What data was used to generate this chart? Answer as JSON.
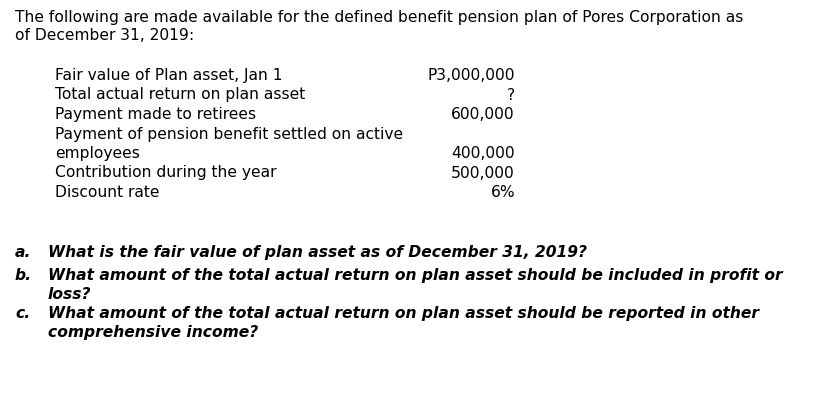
{
  "bg_color": "#ffffff",
  "intro_line1": "The following are made available for the defined benefit pension plan of Pores Corporation as",
  "intro_line2": "of December 31, 2019:",
  "table_rows": [
    {
      "label": "Fair value of Plan asset, Jan 1",
      "value": "P3,000,000"
    },
    {
      "label": "Total actual return on plan asset",
      "value": "?"
    },
    {
      "label": "Payment made to retirees",
      "value": "600,000"
    },
    {
      "label": "Payment of pension benefit settled on active",
      "value": ""
    },
    {
      "label": "employees",
      "value": "400,000"
    },
    {
      "label": "Contribution during the year",
      "value": "500,000"
    },
    {
      "label": "Discount rate",
      "value": "6%"
    }
  ],
  "q_lines": [
    {
      "letter": "a.",
      "line1": "What is the fair value of plan asset as of December 31, 2019?",
      "line2": ""
    },
    {
      "letter": "b.",
      "line1": "What amount of the total actual return on plan asset should be included in profit or",
      "line2": "loss?"
    },
    {
      "letter": "c.",
      "line1": "What amount of the total actual return on plan asset should be reported in other",
      "line2": "comprehensive income?"
    }
  ],
  "text_color": "#000000",
  "fontsize": 11.2
}
